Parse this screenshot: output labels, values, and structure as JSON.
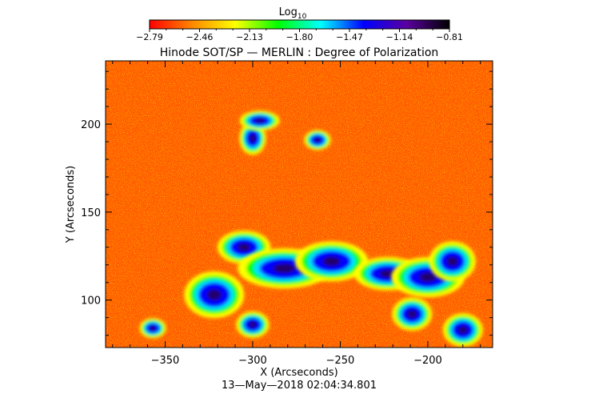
{
  "chart_data": {
    "type": "heatmap",
    "title": "Hinode SOT/SP — MERLIN : Degree of Polarization",
    "xlabel": "X (Arcseconds)",
    "ylabel": "Y (Arcseconds)",
    "timestamp": "13—May—2018 02:04:34.801",
    "xlim": [
      -384,
      -163
    ],
    "ylim": [
      73,
      236
    ],
    "x_ticks": [
      -350,
      -300,
      -250,
      -200
    ],
    "x_tick_labels": [
      "−350",
      "−300",
      "−250",
      "−200"
    ],
    "y_ticks": [
      100,
      150,
      200
    ],
    "y_tick_labels": [
      "100",
      "150",
      "200"
    ],
    "colorbar": {
      "label": "Log",
      "label_sub": "10",
      "min": -2.79,
      "max": -0.81,
      "tick_values": [
        -2.79,
        -2.46,
        -2.13,
        -1.8,
        -1.47,
        -1.14,
        -0.81
      ],
      "tick_labels": [
        "−2.79",
        "−2.46",
        "−2.13",
        "−1.80",
        "−1.47",
        "−1.14",
        "−0.81"
      ],
      "colors": [
        "#ff0000",
        "#ff8800",
        "#ffff00",
        "#00ff00",
        "#00ffff",
        "#0000ff",
        "#5a00a0",
        "#000000"
      ]
    },
    "high_polarization_regions": [
      {
        "x": -322,
        "y": 103,
        "rx": 9,
        "ry": 7
      },
      {
        "x": -305,
        "y": 130,
        "rx": 8,
        "ry": 5
      },
      {
        "x": -282,
        "y": 118,
        "rx": 14,
        "ry": 6
      },
      {
        "x": -255,
        "y": 122,
        "rx": 11,
        "ry": 6
      },
      {
        "x": -223,
        "y": 115,
        "rx": 10,
        "ry": 5
      },
      {
        "x": -200,
        "y": 113,
        "rx": 11,
        "ry": 6
      },
      {
        "x": -186,
        "y": 122,
        "rx": 7,
        "ry": 6
      },
      {
        "x": -209,
        "y": 92,
        "rx": 6,
        "ry": 5
      },
      {
        "x": -180,
        "y": 83,
        "rx": 6,
        "ry": 5
      },
      {
        "x": -300,
        "y": 192,
        "rx": 4,
        "ry": 5
      },
      {
        "x": -296,
        "y": 202,
        "rx": 6,
        "ry": 3
      },
      {
        "x": -263,
        "y": 191,
        "rx": 4,
        "ry": 3
      },
      {
        "x": -300,
        "y": 86,
        "rx": 5,
        "ry": 4
      },
      {
        "x": -357,
        "y": 84,
        "rx": 4,
        "ry": 3
      }
    ]
  }
}
